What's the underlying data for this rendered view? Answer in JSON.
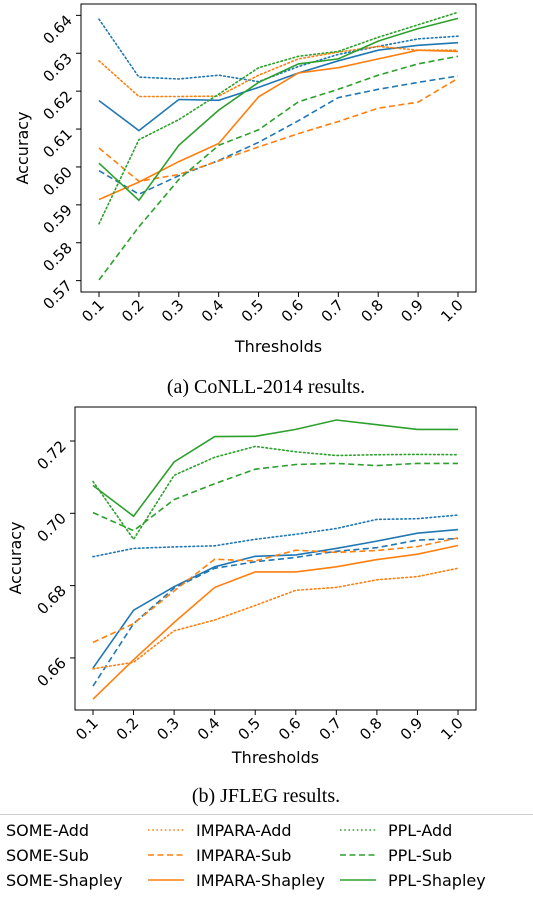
{
  "chart_data": [
    {
      "type": "line",
      "caption": "(a) CoNLL-2014 results.",
      "xlabel": "Thresholds",
      "ylabel": "Accuracy",
      "x": [
        0.1,
        0.2,
        0.3,
        0.4,
        0.5,
        0.6,
        0.7,
        0.8,
        0.9,
        1.0
      ],
      "xticks": [
        "0.1",
        "0.2",
        "0.3",
        "0.4",
        "0.5",
        "0.6",
        "0.7",
        "0.8",
        "0.9",
        "1.0"
      ],
      "yticks": [
        "0.57",
        "0.58",
        "0.59",
        "0.60",
        "0.61",
        "0.62",
        "0.63",
        "0.64"
      ],
      "ytick_values": [
        0.57,
        0.58,
        0.59,
        0.6,
        0.61,
        0.62,
        0.63,
        0.64
      ],
      "ylim": [
        0.567,
        0.643
      ],
      "grid": false,
      "series": [
        {
          "name": "SOME-Add",
          "color": "#1f77b4",
          "style": "dotted",
          "values": [
            0.639,
            0.6237,
            0.6232,
            0.6242,
            0.6225,
            0.6265,
            0.6297,
            0.6318,
            0.6338,
            0.6345
          ]
        },
        {
          "name": "SOME-Sub",
          "color": "#1f77b4",
          "style": "dashed",
          "values": [
            0.599,
            0.5928,
            0.5977,
            0.6017,
            0.6065,
            0.6122,
            0.6183,
            0.6205,
            0.6223,
            0.624
          ]
        },
        {
          "name": "SOME-Shapley",
          "color": "#1f77b4",
          "style": "solid",
          "values": [
            0.6175,
            0.6096,
            0.6178,
            0.6176,
            0.621,
            0.6248,
            0.628,
            0.6308,
            0.6321,
            0.6328
          ]
        },
        {
          "name": "IMPARA-Add",
          "color": "#ff7f0e",
          "style": "dotted",
          "values": [
            0.628,
            0.6186,
            0.6186,
            0.6187,
            0.6242,
            0.6285,
            0.6303,
            0.6318,
            0.6308,
            0.6308
          ]
        },
        {
          "name": "IMPARA-Sub",
          "color": "#ff7f0e",
          "style": "dashed",
          "values": [
            0.605,
            0.5962,
            0.598,
            0.6016,
            0.6053,
            0.6088,
            0.612,
            0.6155,
            0.6171,
            0.6234
          ]
        },
        {
          "name": "IMPARA-Shapley",
          "color": "#ff7f0e",
          "style": "solid",
          "values": [
            0.5914,
            0.596,
            0.6014,
            0.6062,
            0.6185,
            0.6248,
            0.6262,
            0.6285,
            0.6308,
            0.6305
          ]
        },
        {
          "name": "PPL-Add",
          "color": "#2ca02c",
          "style": "dotted",
          "values": [
            0.585,
            0.6072,
            0.6125,
            0.6192,
            0.6262,
            0.6292,
            0.6305,
            0.6342,
            0.6375,
            0.6408
          ]
        },
        {
          "name": "PPL-Sub",
          "color": "#2ca02c",
          "style": "dashed",
          "values": [
            0.5702,
            0.5842,
            0.5967,
            0.6057,
            0.6098,
            0.6172,
            0.6205,
            0.6242,
            0.6272,
            0.6292
          ]
        },
        {
          "name": "PPL-Shapley",
          "color": "#2ca02c",
          "style": "solid",
          "values": [
            0.601,
            0.5912,
            0.6057,
            0.615,
            0.6223,
            0.6272,
            0.6285,
            0.6332,
            0.6365,
            0.6392
          ]
        }
      ]
    },
    {
      "type": "line",
      "caption": "(b) JFLEG results.",
      "xlabel": "Thresholds",
      "ylabel": "Accuracy",
      "x": [
        0.1,
        0.2,
        0.3,
        0.4,
        0.5,
        0.6,
        0.7,
        0.8,
        0.9,
        1.0
      ],
      "xticks": [
        "0.1",
        "0.2",
        "0.3",
        "0.4",
        "0.5",
        "0.6",
        "0.7",
        "0.8",
        "0.9",
        "1.0"
      ],
      "yticks": [
        "0.66",
        "0.68",
        "0.70",
        "0.72"
      ],
      "ytick_values": [
        0.66,
        0.68,
        0.7,
        0.72
      ],
      "ylim": [
        0.6456,
        0.7294
      ],
      "grid": false,
      "series": [
        {
          "name": "SOME-Add",
          "color": "#1f77b4",
          "style": "dotted",
          "values": [
            0.688,
            0.6903,
            0.6907,
            0.691,
            0.6928,
            0.6942,
            0.6958,
            0.6983,
            0.6985,
            0.6995
          ]
        },
        {
          "name": "SOME-Sub",
          "color": "#1f77b4",
          "style": "dashed",
          "values": [
            0.6522,
            0.6695,
            0.6793,
            0.6848,
            0.6866,
            0.6878,
            0.6895,
            0.6905,
            0.6926,
            0.693
          ]
        },
        {
          "name": "SOME-Shapley",
          "color": "#1f77b4",
          "style": "solid",
          "values": [
            0.6572,
            0.6732,
            0.6797,
            0.6852,
            0.6881,
            0.6885,
            0.6903,
            0.6923,
            0.6945,
            0.6955
          ]
        },
        {
          "name": "IMPARA-Add",
          "color": "#ff7f0e",
          "style": "dotted",
          "values": [
            0.657,
            0.6588,
            0.6675,
            0.6705,
            0.6745,
            0.6787,
            0.6795,
            0.6816,
            0.6825,
            0.6848
          ]
        },
        {
          "name": "IMPARA-Sub",
          "color": "#ff7f0e",
          "style": "dashed",
          "values": [
            0.6643,
            0.6695,
            0.6785,
            0.6873,
            0.6868,
            0.6898,
            0.6892,
            0.6897,
            0.6908,
            0.6932
          ]
        },
        {
          "name": "IMPARA-Shapley",
          "color": "#ff7f0e",
          "style": "solid",
          "values": [
            0.6486,
            0.6595,
            0.6698,
            0.6795,
            0.6838,
            0.6838,
            0.6852,
            0.6872,
            0.6887,
            0.6911
          ]
        },
        {
          "name": "PPL-Add",
          "color": "#2ca02c",
          "style": "dotted",
          "values": [
            0.7088,
            0.6928,
            0.7105,
            0.7155,
            0.7185,
            0.717,
            0.716,
            0.7162,
            0.7163,
            0.7162
          ]
        },
        {
          "name": "PPL-Sub",
          "color": "#2ca02c",
          "style": "dashed",
          "values": [
            0.7002,
            0.6952,
            0.7038,
            0.7082,
            0.7122,
            0.7135,
            0.7138,
            0.7132,
            0.7138,
            0.7138
          ]
        },
        {
          "name": "PPL-Shapley",
          "color": "#2ca02c",
          "style": "solid",
          "values": [
            0.7077,
            0.6992,
            0.7142,
            0.7212,
            0.7213,
            0.7232,
            0.7258,
            0.7245,
            0.7232,
            0.7232
          ]
        }
      ]
    }
  ],
  "legend": {
    "placement": "bottom",
    "entries": [
      {
        "label": "SOME-Add",
        "color": "#1f77b4",
        "style": "dotted"
      },
      {
        "label": "SOME-Sub",
        "color": "#1f77b4",
        "style": "dashed"
      },
      {
        "label": "SOME-Shapley",
        "color": "#1f77b4",
        "style": "solid"
      },
      {
        "label": "IMPARA-Add",
        "color": "#ff7f0e",
        "style": "dotted"
      },
      {
        "label": "IMPARA-Sub",
        "color": "#ff7f0e",
        "style": "dashed"
      },
      {
        "label": "IMPARA-Shapley",
        "color": "#ff7f0e",
        "style": "solid"
      },
      {
        "label": "PPL-Add",
        "color": "#2ca02c",
        "style": "dotted"
      },
      {
        "label": "PPL-Sub",
        "color": "#2ca02c",
        "style": "dashed"
      },
      {
        "label": "PPL-Shapley",
        "color": "#2ca02c",
        "style": "solid"
      }
    ]
  }
}
